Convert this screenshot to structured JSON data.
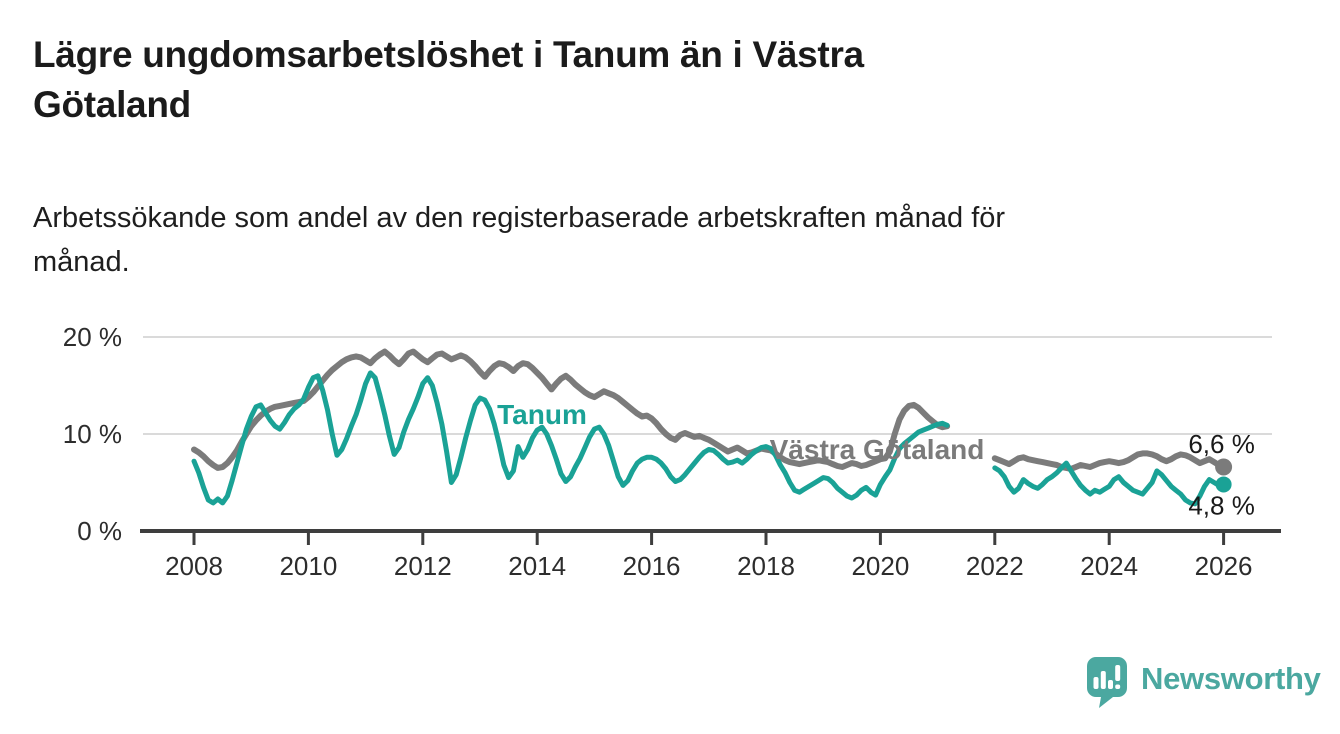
{
  "header": {
    "title": "Lägre ungdomsarbetslöshet i Tanum än i Västra Götaland",
    "title_lines": [
      "Lägre ungdomsarbetslöshet i Tanum än i Västra",
      "Götaland"
    ],
    "subtitle": "Arbetssökande som andel av den registerbaserade arbetskraften månad för månad.",
    "subtitle_lines": [
      "Arbetssökande som andel av den registerbaserade arbetskraften månad för",
      "månad."
    ]
  },
  "branding": {
    "logo_text": "Newsworthy",
    "logo_color": "#4ba8a0",
    "logo_icon": "speech-bubble-bar-chart"
  },
  "chart_data": {
    "type": "line",
    "title": "Lägre ungdomsarbetslöshet i Tanum än i Västra Götaland",
    "subtitle": "Arbetssökande som andel av den registerbaserade arbetskraften månad för månad.",
    "unit": "%",
    "frequency": "monthly",
    "x_start": "2008-01",
    "x_end": "2026-01",
    "data_gap": {
      "from": "2021-04",
      "to": "2021-12"
    },
    "x_tick_years": [
      2008,
      2010,
      2012,
      2014,
      2016,
      2018,
      2020,
      2022,
      2024,
      2026
    ],
    "y_ticks": [
      {
        "value": 0,
        "label": "0 %"
      },
      {
        "value": 10,
        "label": "10 %"
      },
      {
        "value": 20,
        "label": "20 %"
      }
    ],
    "ylim": [
      0,
      21
    ],
    "grid": "horizontal",
    "legend_position": "inline-labels",
    "series": [
      {
        "id": "vastra-gotaland",
        "name": "Västra Götaland",
        "color": "#7b7b7b",
        "end_value": 6.6,
        "end_label": "6,6 %",
        "values": [
          8.4,
          8.1,
          7.7,
          7.2,
          6.8,
          6.5,
          6.6,
          7.0,
          7.6,
          8.3,
          9.2,
          10.0,
          10.8,
          11.4,
          11.9,
          12.3,
          12.6,
          12.8,
          12.9,
          13.0,
          13.1,
          13.2,
          13.3,
          13.4,
          13.8,
          14.3,
          14.9,
          15.5,
          16.1,
          16.6,
          17.0,
          17.4,
          17.7,
          17.9,
          18.0,
          17.9,
          17.6,
          17.3,
          17.8,
          18.2,
          18.5,
          18.1,
          17.6,
          17.2,
          17.7,
          18.3,
          18.5,
          18.1,
          17.7,
          17.4,
          17.8,
          18.2,
          18.3,
          18.0,
          17.7,
          17.9,
          18.1,
          17.9,
          17.5,
          17.0,
          16.4,
          15.9,
          16.5,
          17.0,
          17.3,
          17.2,
          16.9,
          16.5,
          17.0,
          17.3,
          17.2,
          16.8,
          16.3,
          15.8,
          15.2,
          14.6,
          15.2,
          15.7,
          16.0,
          15.6,
          15.1,
          14.7,
          14.3,
          14.0,
          13.8,
          14.1,
          14.4,
          14.2,
          14.0,
          13.7,
          13.3,
          12.9,
          12.5,
          12.1,
          11.8,
          11.9,
          11.6,
          11.1,
          10.5,
          10.0,
          9.6,
          9.4,
          9.9,
          10.1,
          9.9,
          9.7,
          9.8,
          9.6,
          9.4,
          9.1,
          8.8,
          8.5,
          8.2,
          8.4,
          8.6,
          8.3,
          8.0,
          8.1,
          8.3,
          8.5,
          8.4,
          8.3,
          8.0,
          7.6,
          7.3,
          7.1,
          7.0,
          6.9,
          7.0,
          7.1,
          7.2,
          7.3,
          7.2,
          7.1,
          6.9,
          6.7,
          6.6,
          6.8,
          7.0,
          6.9,
          6.7,
          6.8,
          7.0,
          7.2,
          7.4,
          7.5,
          8.2,
          10.0,
          11.5,
          12.4,
          12.9,
          13.0,
          12.7,
          12.2,
          11.7,
          11.3,
          10.9,
          10.7,
          10.8,
          null,
          null,
          null,
          null,
          null,
          null,
          null,
          null,
          null,
          7.5,
          7.3,
          7.1,
          6.9,
          7.2,
          7.5,
          7.6,
          7.4,
          7.3,
          7.2,
          7.1,
          7.0,
          6.9,
          6.8,
          6.6,
          6.5,
          6.4,
          6.6,
          6.8,
          6.7,
          6.6,
          6.8,
          7.0,
          7.1,
          7.2,
          7.1,
          7.0,
          7.1,
          7.3,
          7.6,
          7.9,
          8.0,
          8.0,
          7.9,
          7.7,
          7.4,
          7.2,
          7.4,
          7.7,
          7.9,
          7.8,
          7.6,
          7.3,
          7.0,
          7.2,
          7.4,
          7.1,
          6.8,
          6.6
        ]
      },
      {
        "id": "tanum",
        "name": "Tanum",
        "color": "#1aa296",
        "end_value": 4.8,
        "end_label": "4,8 %",
        "values": [
          7.2,
          6.0,
          4.5,
          3.2,
          2.9,
          3.3,
          2.9,
          3.6,
          5.2,
          7.0,
          8.8,
          10.5,
          11.8,
          12.8,
          13.0,
          12.2,
          11.4,
          10.8,
          10.5,
          11.2,
          12.0,
          12.6,
          13.0,
          13.6,
          14.8,
          15.8,
          16.0,
          14.5,
          12.5,
          10.0,
          7.8,
          8.4,
          9.5,
          10.8,
          12.0,
          13.5,
          15.2,
          16.3,
          15.8,
          14.0,
          12.0,
          9.8,
          7.9,
          8.6,
          10.2,
          11.5,
          12.6,
          13.8,
          15.2,
          15.8,
          15.0,
          13.2,
          11.0,
          8.2,
          5.0,
          5.8,
          7.6,
          9.6,
          11.4,
          13.0,
          13.7,
          13.5,
          12.6,
          11.0,
          9.0,
          6.8,
          5.5,
          6.2,
          8.7,
          7.6,
          8.4,
          9.6,
          10.4,
          10.7,
          10.0,
          8.8,
          7.4,
          5.9,
          5.1,
          5.6,
          6.6,
          7.5,
          8.6,
          9.7,
          10.5,
          10.7,
          10.0,
          8.8,
          7.2,
          5.6,
          4.7,
          5.2,
          6.2,
          7.0,
          7.4,
          7.6,
          7.6,
          7.4,
          7.0,
          6.4,
          5.6,
          5.1,
          5.3,
          5.8,
          6.4,
          7.0,
          7.6,
          8.1,
          8.4,
          8.3,
          7.9,
          7.4,
          7.0,
          7.1,
          7.3,
          7.0,
          7.4,
          7.9,
          8.3,
          8.6,
          8.7,
          8.5,
          7.8,
          6.8,
          6.0,
          5.0,
          4.2,
          4.0,
          4.3,
          4.6,
          4.9,
          5.2,
          5.5,
          5.4,
          5.0,
          4.4,
          4.0,
          3.6,
          3.4,
          3.7,
          4.2,
          4.5,
          4.0,
          3.7,
          4.8,
          5.6,
          6.3,
          7.5,
          8.5,
          9.0,
          9.4,
          9.8,
          10.2,
          10.4,
          10.6,
          10.8,
          11.0,
          11.1,
          10.9,
          null,
          null,
          null,
          null,
          null,
          null,
          null,
          null,
          null,
          6.5,
          6.2,
          5.6,
          4.6,
          4.0,
          4.4,
          5.3,
          4.9,
          4.6,
          4.4,
          4.8,
          5.3,
          5.6,
          6.0,
          6.5,
          7.0,
          6.2,
          5.4,
          4.7,
          4.2,
          3.8,
          4.2,
          4.0,
          4.3,
          4.6,
          5.3,
          5.6,
          5.0,
          4.6,
          4.2,
          4.0,
          3.8,
          4.4,
          5.0,
          6.2,
          5.8,
          5.2,
          4.6,
          4.2,
          3.8,
          3.2,
          2.9,
          2.8,
          3.6,
          4.6,
          5.3,
          5.0,
          4.7,
          4.8
        ]
      }
    ]
  }
}
